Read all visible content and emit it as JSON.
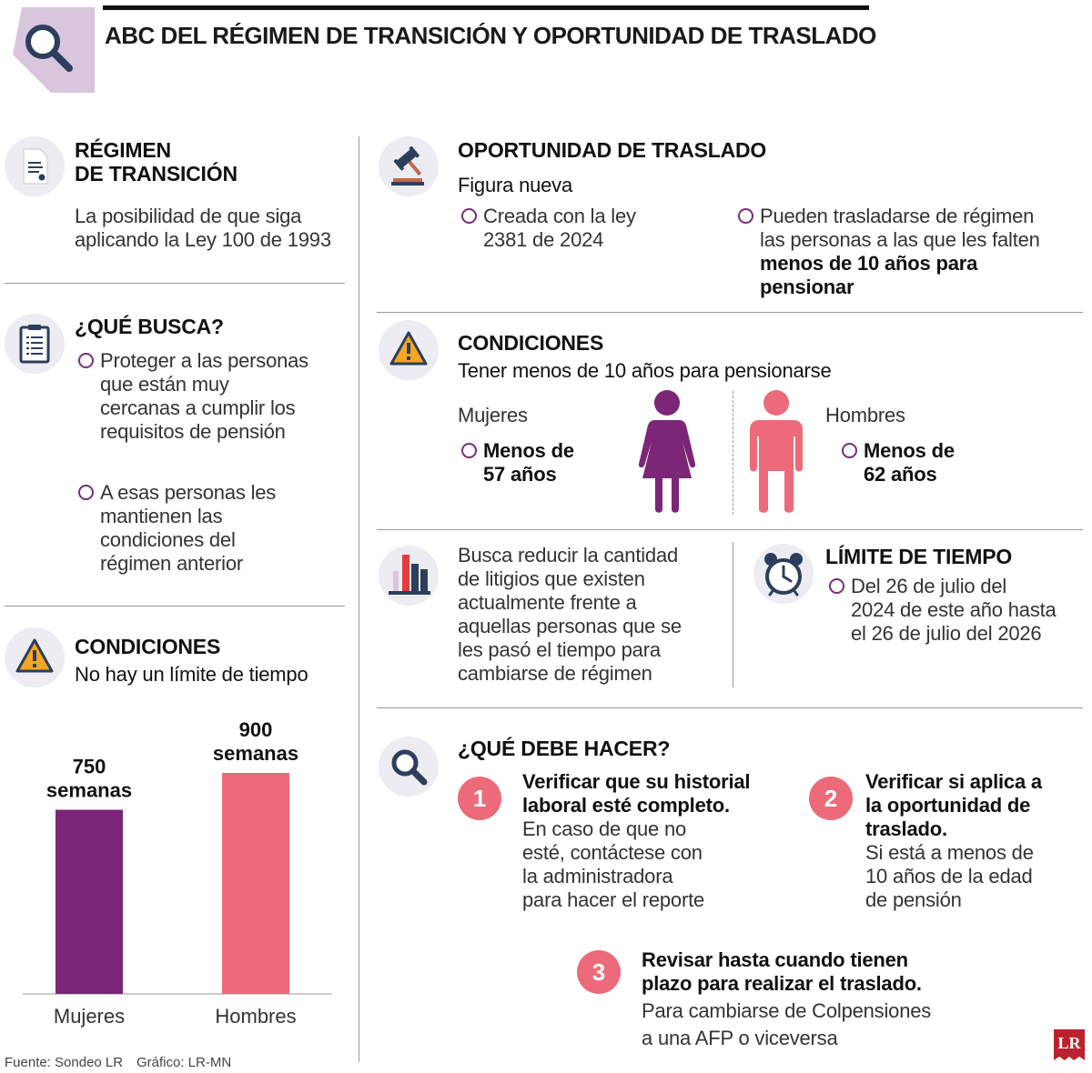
{
  "header": {
    "title": "ABC DEL RÉGIMEN DE TRANSICIÓN Y OPORTUNIDAD DE TRASLADO"
  },
  "left": {
    "regimen": {
      "title_line1": "RÉGIMEN",
      "title_line2": "DE TRANSICIÓN",
      "text_line1": "La posibilidad de que siga",
      "text_line2": "aplicando la Ley 100 de 1993"
    },
    "que_busca": {
      "title": "¿QUÉ BUSCA?",
      "bullet1": [
        "Proteger a las personas",
        "que están muy",
        "cercanas a cumplir los",
        "requisitos de pensión"
      ],
      "bullet2": [
        "A esas personas les",
        "mantienen las",
        "condiciones del",
        "régimen anterior"
      ]
    },
    "condiciones": {
      "title": "CONDICIONES",
      "subtitle": "No hay un límite de tiempo"
    }
  },
  "chart_data": {
    "type": "bar",
    "categories": [
      "Mujeres",
      "Hombres"
    ],
    "values": [
      750,
      900
    ],
    "value_labels": [
      [
        "750",
        "semanas"
      ],
      [
        "900",
        "semanas"
      ]
    ],
    "colors": [
      "#7b2676",
      "#ec6a7a"
    ],
    "ylim": [
      0,
      900
    ]
  },
  "right": {
    "oportunidad": {
      "title": "OPORTUNIDAD DE TRASLADO",
      "subtitle": "Figura nueva",
      "bullet1": [
        "Creada con la ley",
        "2381 de 2024"
      ],
      "bullet2_normal": [
        "Pueden trasladarse de régimen",
        "las personas a las que les falten"
      ],
      "bullet2_bold": [
        "menos de 10 años para",
        "pensionar"
      ]
    },
    "condiciones": {
      "title": "CONDICIONES",
      "subtitle": "Tener menos de 10 años para pensionarse",
      "mujeres_label": "Mujeres",
      "mujeres_value": [
        "Menos de",
        "57 años"
      ],
      "hombres_label": "Hombres",
      "hombres_value": [
        "Menos de",
        "62 años"
      ]
    },
    "busca": {
      "text": [
        "Busca reducir la cantidad",
        "de litigios que existen",
        "actualmente frente a",
        "aquellas personas que se",
        "les pasó el tiempo para",
        "cambiarse de régimen"
      ]
    },
    "limite": {
      "title": "LÍMITE DE TIEMPO",
      "text": [
        "Del 26 de julio del",
        "2024 de este año hasta",
        "el 26 de julio del 2026"
      ]
    },
    "que_debe": {
      "title": "¿QUÉ DEBE HACER?",
      "step1_num": "1",
      "step1_bold": [
        "Verificar que su historial",
        "laboral esté completo."
      ],
      "step1_text": [
        "En caso de que no",
        "esté, contáctese con",
        "la administradora",
        "para hacer el reporte"
      ],
      "step2_num": "2",
      "step2_bold": [
        "Verificar si aplica a",
        "la oportunidad de",
        "traslado."
      ],
      "step2_text": [
        "Si está a menos de",
        "10 años de la edad",
        "de pensión"
      ],
      "step3_num": "3",
      "step3_bold": [
        "Revisar hasta cuando tienen",
        "plazo para realizar el traslado."
      ],
      "step3_text": [
        "Para cambiarse de Colpensiones",
        "a una AFP o viceversa"
      ]
    }
  },
  "footer": {
    "source": "Fuente: Sondeo LR",
    "graphic": "Gráfico: LR-MN",
    "logo": "LR"
  },
  "colors": {
    "purple": "#7b2676",
    "pink": "#ec6a7a",
    "lavender": "#d9c6dd"
  }
}
